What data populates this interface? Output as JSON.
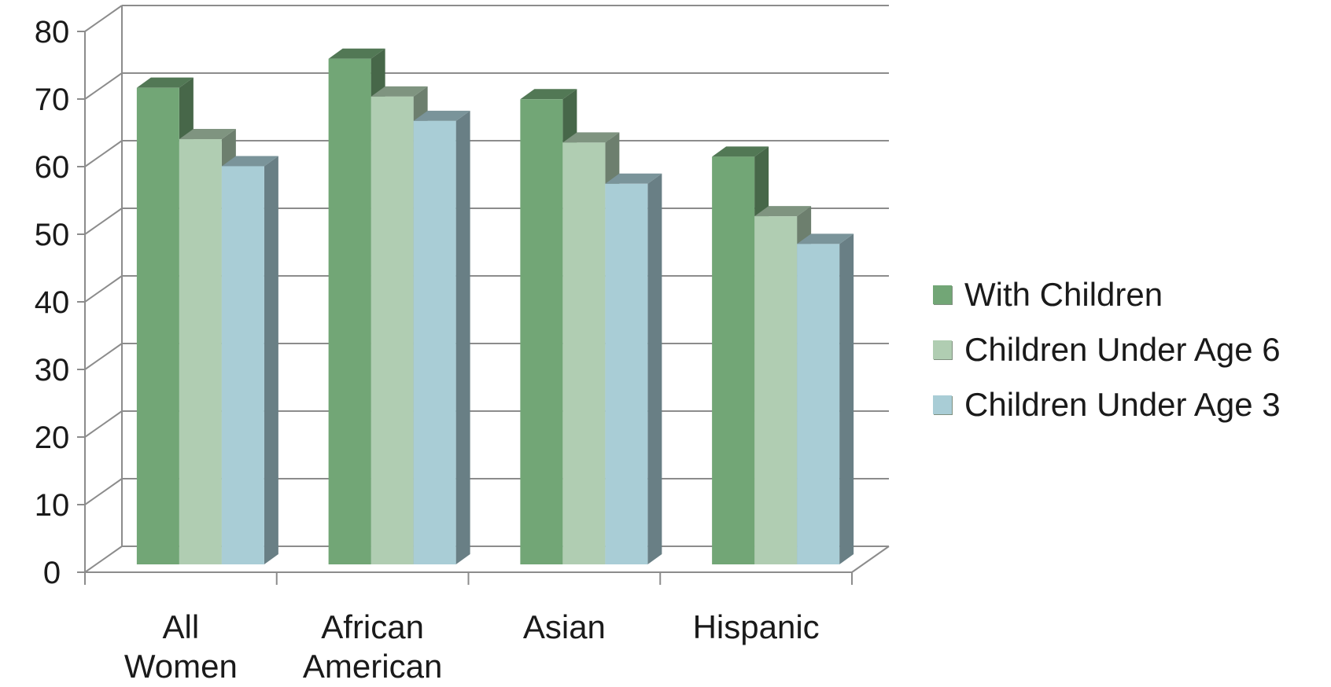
{
  "chart_data": {
    "type": "bar",
    "style": "3d-clustered-column",
    "categories": [
      "All Women",
      "African American",
      "Asian",
      "Hispanic"
    ],
    "series": [
      {
        "name": "With Children",
        "values": [
          71.2,
          75.5,
          69.5,
          61.0
        ],
        "color": "#72a676"
      },
      {
        "name": "Children Under Age 6",
        "values": [
          63.6,
          69.9,
          63.1,
          52.2
        ],
        "color": "#b0cdb2"
      },
      {
        "name": "Children Under Age 3",
        "values": [
          59.6,
          66.3,
          57.0,
          48.1
        ],
        "color": "#a9cdd6"
      }
    ],
    "ylim": [
      0,
      80
    ],
    "yticks": [
      "0",
      "10",
      "20",
      "30",
      "40",
      "50",
      "60",
      "70",
      "80"
    ],
    "grid": true,
    "legend_position": "right"
  }
}
